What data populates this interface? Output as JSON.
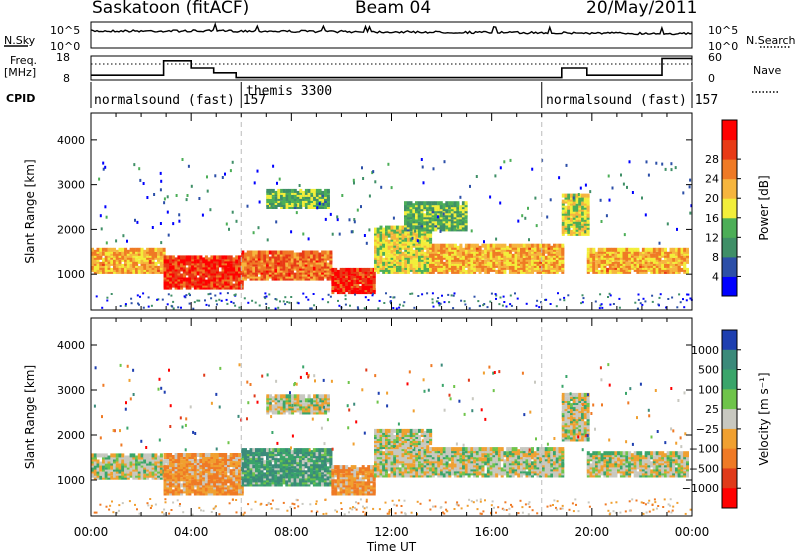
{
  "header": {
    "station": "Saskatoon (fitACF)",
    "beam": "Beam 04",
    "date": "20/May/2011"
  },
  "noise_panel": {
    "left_label": "N.Sky",
    "right_label": "N.Search",
    "left_ticks": [
      "10^5",
      "10^0"
    ],
    "right_ticks": [
      "10^5",
      "10^0"
    ]
  },
  "freq_panel": {
    "left_label_line1": "Freq.",
    "left_label_line2": "[MHz]",
    "right_label": "Nave",
    "left_ticks": [
      "18",
      "8"
    ],
    "right_ticks": [
      "60",
      "0"
    ],
    "freq_steps": [
      {
        "from": 0.0,
        "to": 2.9,
        "value": 10
      },
      {
        "from": 2.9,
        "to": 4.0,
        "value": 16
      },
      {
        "from": 4.0,
        "to": 4.9,
        "value": 13
      },
      {
        "from": 4.9,
        "to": 5.8,
        "value": 11
      },
      {
        "from": 5.8,
        "to": 18.8,
        "value": 9
      },
      {
        "from": 18.8,
        "to": 19.8,
        "value": 13
      },
      {
        "from": 19.8,
        "to": 22.8,
        "value": 10
      },
      {
        "from": 22.8,
        "to": 24.0,
        "value": 17
      }
    ],
    "nave_level": 40
  },
  "cpid": {
    "label": "CPID",
    "segments": [
      {
        "text": "normalsound (fast) 157",
        "start": 0.0
      },
      {
        "text": "themis 3300",
        "start": 6.0
      },
      {
        "text": "normalsound (fast) 157",
        "start": 18.0
      }
    ]
  },
  "time_axis": {
    "label": "Time UT",
    "ticks": [
      "00:00",
      "04:00",
      "08:00",
      "12:00",
      "16:00",
      "20:00",
      "00:00"
    ],
    "range": [
      0,
      24
    ]
  },
  "power_panel": {
    "ylabel": "Slant Range [km]",
    "yticks": [
      "1000",
      "2000",
      "3000",
      "4000"
    ],
    "colorbar_title": "Power [dB]",
    "colorbar_ticks": [
      "4",
      "8",
      "12",
      "16",
      "20",
      "24",
      "28"
    ],
    "colors": [
      "#0000ff",
      "#2c4fa8",
      "#3f8f67",
      "#4cae57",
      "#f2ee3a",
      "#f6b53e",
      "#ef7a25",
      "#e83a16",
      "#ff0000"
    ]
  },
  "velocity_panel": {
    "ylabel": "Slant Range [km]",
    "yticks": [
      "1000",
      "2000",
      "3000",
      "4000"
    ],
    "colorbar_title": "Velocity [m s⁻¹]",
    "colorbar_ticks": [
      "1000",
      "500",
      "100",
      "25",
      "−25",
      "−100",
      "−500",
      "−1000"
    ],
    "colors": [
      "#1e3fb0",
      "#3b8a7a",
      "#3aa56a",
      "#6fc44a",
      "#c8c8c0",
      "#f0a030",
      "#ef7a25",
      "#e03a1a",
      "#ff0000"
    ]
  },
  "chart_data": [
    {
      "type": "heatmap",
      "title": "Power",
      "xlabel": "Time UT",
      "ylabel": "Slant Range [km]",
      "xlim": [
        0,
        24
      ],
      "ylim": [
        200,
        4600
      ],
      "zlabel": "Power [dB]",
      "zlim": [
        0,
        32
      ],
      "bands": [
        {
          "t0": 0.0,
          "t1": 2.9,
          "r0": 1050,
          "r1": 1550,
          "level": 20
        },
        {
          "t0": 2.9,
          "t1": 6.0,
          "r0": 700,
          "r1": 1400,
          "level": 28
        },
        {
          "t0": 6.0,
          "t1": 9.6,
          "r0": 900,
          "r1": 1500,
          "level": 24
        },
        {
          "t0": 9.6,
          "t1": 11.3,
          "r0": 600,
          "r1": 1100,
          "level": 28
        },
        {
          "t0": 11.3,
          "t1": 13.5,
          "r0": 1050,
          "r1": 2050,
          "level": 16
        },
        {
          "t0": 13.5,
          "t1": 18.8,
          "r0": 1050,
          "r1": 1650,
          "level": 20
        },
        {
          "t0": 18.8,
          "t1": 19.8,
          "r0": 1900,
          "r1": 2800,
          "level": 16
        },
        {
          "t0": 19.8,
          "t1": 23.8,
          "r0": 1050,
          "r1": 1550,
          "level": 20
        },
        {
          "t0": 7.0,
          "t1": 9.5,
          "r0": 2500,
          "r1": 2900,
          "level": 12
        },
        {
          "t0": 12.5,
          "t1": 15.0,
          "r0": 2000,
          "r1": 2600,
          "level": 12
        }
      ]
    },
    {
      "type": "heatmap",
      "title": "Velocity",
      "xlabel": "Time UT",
      "ylabel": "Slant Range [km]",
      "xlim": [
        0,
        24
      ],
      "ylim": [
        200,
        4600
      ],
      "zlabel": "Velocity [m s-1]",
      "zlim": [
        -1000,
        1000
      ],
      "bands": [
        {
          "t0": 0.0,
          "t1": 2.9,
          "r0": 1050,
          "r1": 1550,
          "level": 0
        },
        {
          "t0": 2.9,
          "t1": 6.0,
          "r0": 700,
          "r1": 1600,
          "level": -100
        },
        {
          "t0": 6.0,
          "t1": 9.6,
          "r0": 900,
          "r1": 1700,
          "level": 100
        },
        {
          "t0": 9.6,
          "t1": 11.3,
          "r0": 700,
          "r1": 1300,
          "level": -100
        },
        {
          "t0": 11.3,
          "t1": 13.5,
          "r0": 1100,
          "r1": 2100,
          "level": 0
        },
        {
          "t0": 13.5,
          "t1": 18.8,
          "r0": 1100,
          "r1": 1700,
          "level": 0
        },
        {
          "t0": 18.8,
          "t1": 19.8,
          "r0": 1900,
          "r1": 2900,
          "level": 0
        },
        {
          "t0": 19.8,
          "t1": 23.8,
          "r0": 1100,
          "r1": 1600,
          "level": 0
        },
        {
          "t0": 7.0,
          "t1": 9.5,
          "r0": 2500,
          "r1": 2900,
          "level": 0
        }
      ]
    }
  ]
}
